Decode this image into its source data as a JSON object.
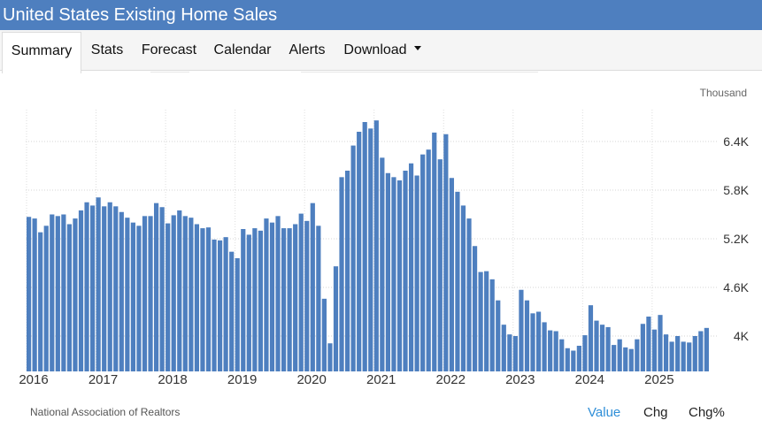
{
  "header": {
    "title": "United States Existing Home Sales"
  },
  "tabs": [
    {
      "label": "Summary",
      "active": true
    },
    {
      "label": "Stats"
    },
    {
      "label": "Forecast"
    },
    {
      "label": "Calendar"
    },
    {
      "label": "Alerts"
    },
    {
      "label": "Download"
    }
  ],
  "footer": {
    "source": "National Association of Realtors",
    "views": [
      "Value",
      "Chg",
      "Chg%"
    ],
    "active_view": "Value"
  },
  "colors": {
    "bar": "#4e7fbf",
    "header": "#4e7fbf",
    "active_link": "#2f8fd8"
  },
  "chart_data": {
    "type": "bar",
    "unit": "Thousand",
    "y_ticks": [
      "6.4K",
      "5.8K",
      "5.2K",
      "4.6K",
      "4K"
    ],
    "y_tick_values": [
      6400,
      5800,
      5200,
      4600,
      4000
    ],
    "y_axis_side": "right",
    "ylim": [
      3600,
      6700
    ],
    "x_tick_labels": [
      "2016",
      "2017",
      "2018",
      "2019",
      "2020",
      "2021",
      "2022",
      "2023",
      "2024",
      "2025"
    ],
    "grid": "dotted",
    "x_start": "2016-01",
    "x": [
      "2016-01",
      "2016-02",
      "2016-03",
      "2016-04",
      "2016-05",
      "2016-06",
      "2016-07",
      "2016-08",
      "2016-09",
      "2016-10",
      "2016-11",
      "2016-12",
      "2017-01",
      "2017-02",
      "2017-03",
      "2017-04",
      "2017-05",
      "2017-06",
      "2017-07",
      "2017-08",
      "2017-09",
      "2017-10",
      "2017-11",
      "2017-12",
      "2018-01",
      "2018-02",
      "2018-03",
      "2018-04",
      "2018-05",
      "2018-06",
      "2018-07",
      "2018-08",
      "2018-09",
      "2018-10",
      "2018-11",
      "2018-12",
      "2019-01",
      "2019-02",
      "2019-03",
      "2019-04",
      "2019-05",
      "2019-06",
      "2019-07",
      "2019-08",
      "2019-09",
      "2019-10",
      "2019-11",
      "2019-12",
      "2020-01",
      "2020-02",
      "2020-03",
      "2020-04",
      "2020-05",
      "2020-06",
      "2020-07",
      "2020-08",
      "2020-09",
      "2020-10",
      "2020-11",
      "2020-12",
      "2021-01",
      "2021-02",
      "2021-03",
      "2021-04",
      "2021-05",
      "2021-06",
      "2021-07",
      "2021-08",
      "2021-09",
      "2021-10",
      "2021-11",
      "2021-12",
      "2022-01",
      "2022-02",
      "2022-03",
      "2022-04",
      "2022-05",
      "2022-06",
      "2022-07",
      "2022-08",
      "2022-09",
      "2022-10",
      "2022-11",
      "2022-12",
      "2023-01",
      "2023-02",
      "2023-03",
      "2023-04",
      "2023-05",
      "2023-06",
      "2023-07",
      "2023-08",
      "2023-09",
      "2023-10",
      "2023-11",
      "2023-12",
      "2024-01",
      "2024-02",
      "2024-03",
      "2024-04",
      "2024-05",
      "2024-06",
      "2024-07",
      "2024-08",
      "2024-09",
      "2024-10",
      "2024-11",
      "2024-12",
      "2025-01",
      "2025-02",
      "2025-03",
      "2025-04",
      "2025-05",
      "2025-06",
      "2025-07",
      "2025-08",
      "2025-09",
      "2025-10"
    ],
    "values": [
      5470,
      5450,
      5280,
      5360,
      5500,
      5480,
      5500,
      5380,
      5450,
      5550,
      5650,
      5610,
      5710,
      5600,
      5650,
      5600,
      5530,
      5460,
      5400,
      5360,
      5480,
      5480,
      5640,
      5590,
      5390,
      5490,
      5550,
      5480,
      5460,
      5380,
      5330,
      5340,
      5190,
      5180,
      5220,
      5040,
      4960,
      5320,
      5250,
      5330,
      5300,
      5450,
      5400,
      5480,
      5330,
      5330,
      5380,
      5510,
      5420,
      5640,
      5360,
      4460,
      3910,
      4860,
      5960,
      6040,
      6350,
      6520,
      6640,
      6560,
      6660,
      6200,
      6010,
      5960,
      5920,
      6040,
      6130,
      5980,
      6240,
      6300,
      6510,
      6180,
      6490,
      5950,
      5780,
      5610,
      5450,
      5110,
      4790,
      4800,
      4700,
      4440,
      4140,
      4020,
      4000,
      4570,
      4440,
      4280,
      4300,
      4170,
      4070,
      4060,
      3960,
      3850,
      3820,
      3880,
      4010,
      4380,
      4190,
      4140,
      4110,
      3890,
      3960,
      3860,
      3840,
      3960,
      4150,
      4240,
      4080,
      4260,
      4020,
      3930,
      4000,
      3930,
      3920,
      4000,
      4060,
      4100
    ]
  }
}
